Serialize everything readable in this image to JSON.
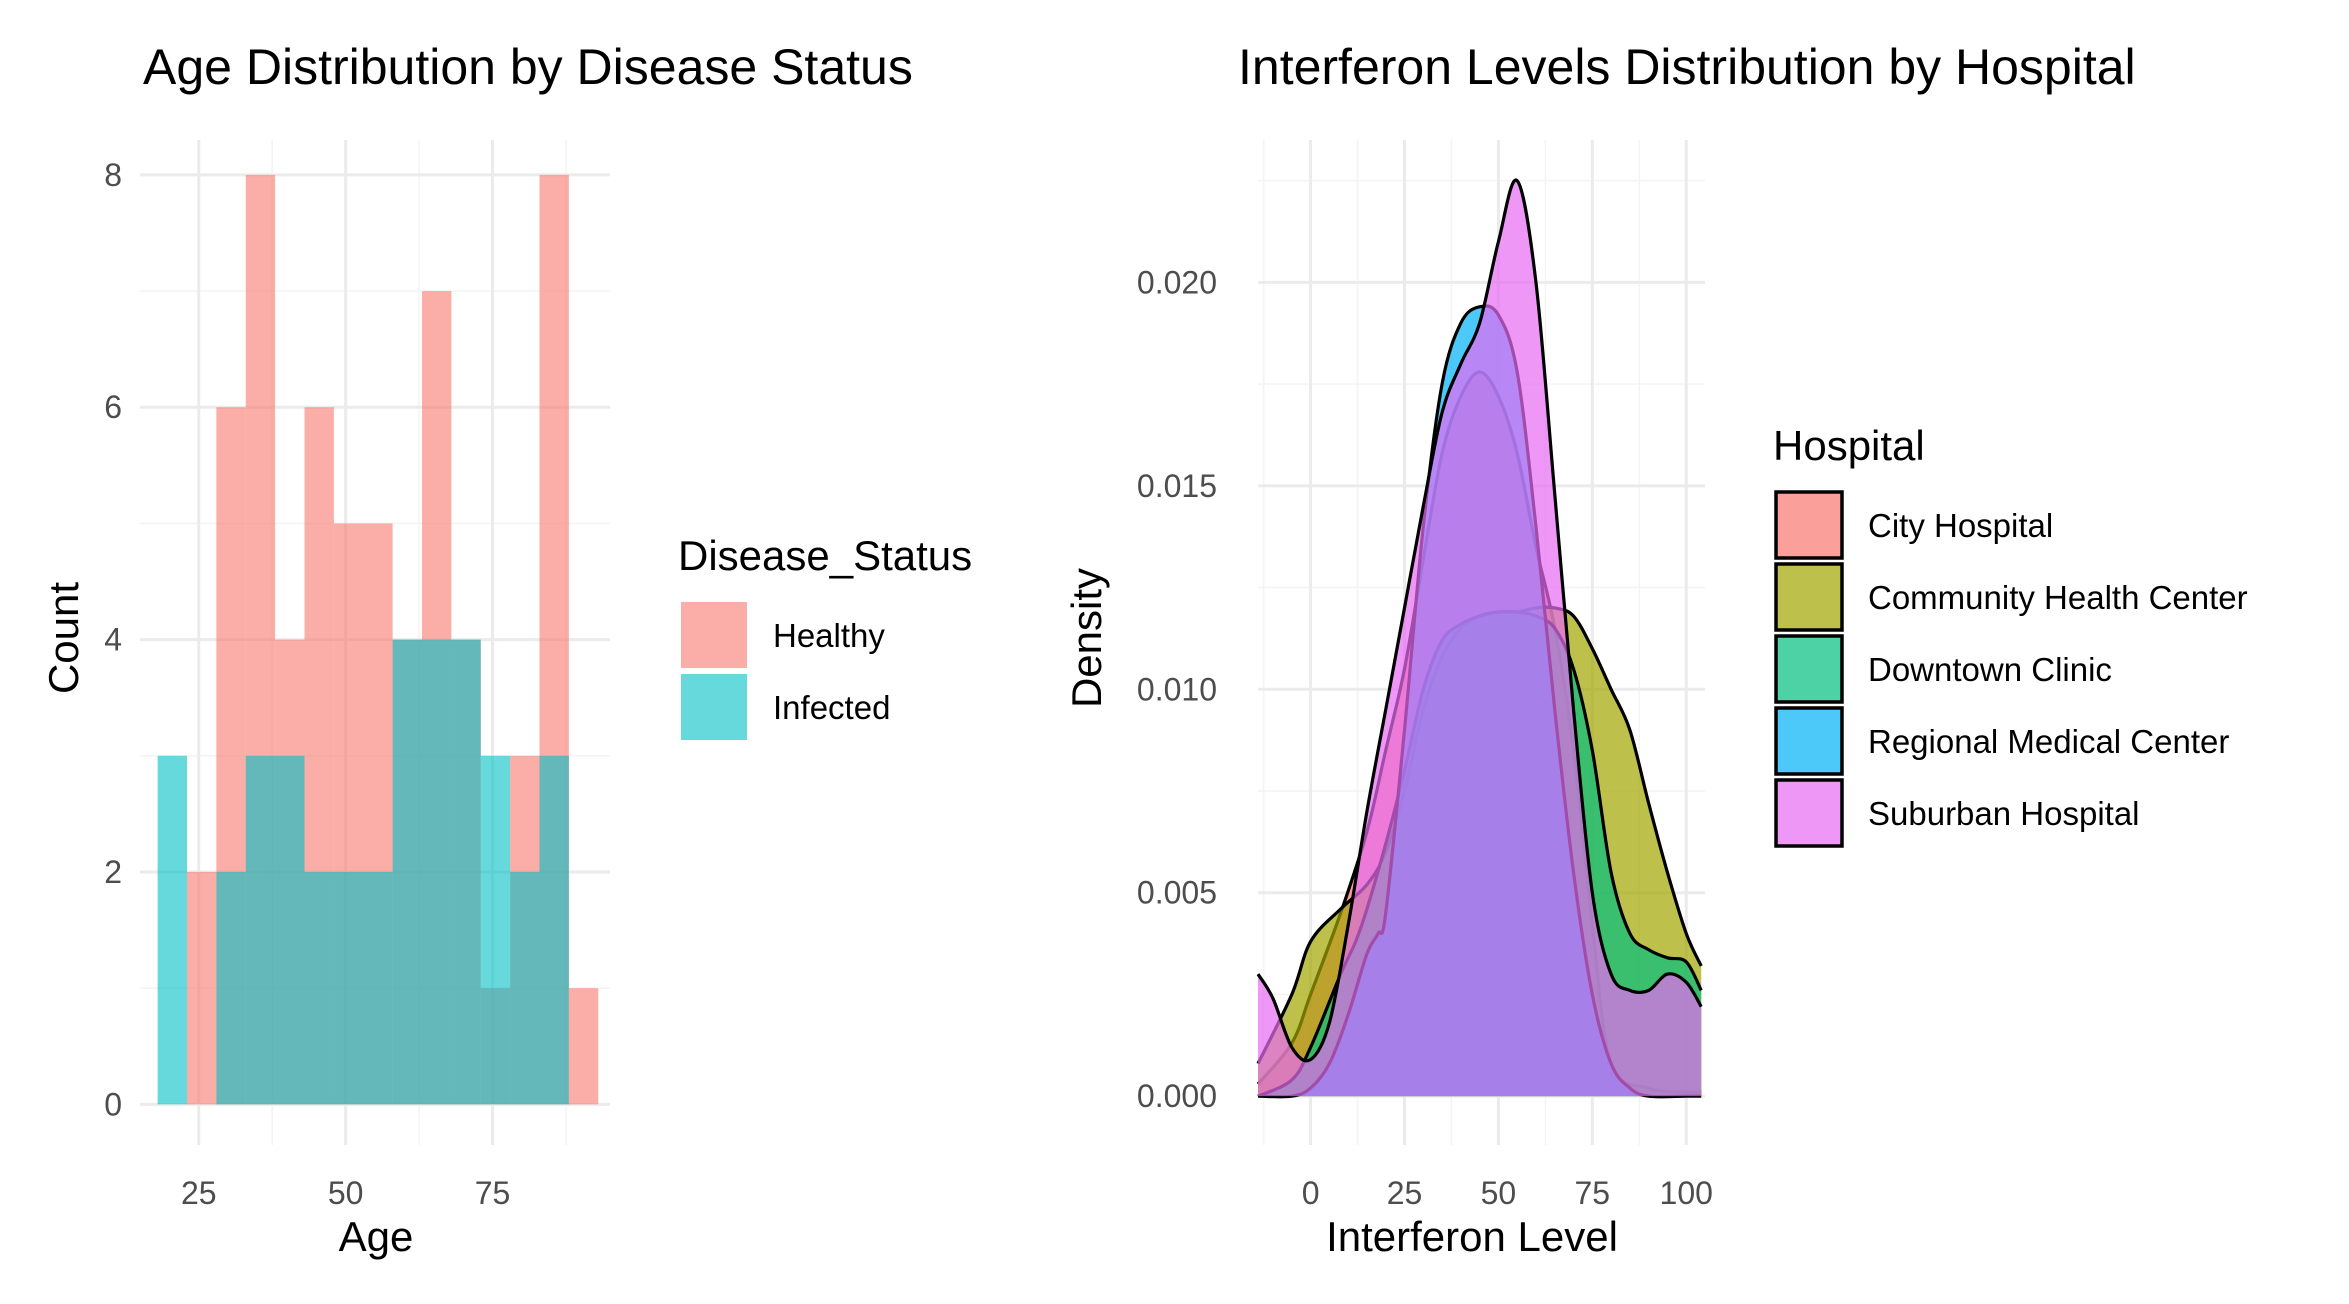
{
  "chart_data": [
    {
      "type": "histogram",
      "title": "Age Distribution by Disease Status",
      "xlabel": "Age",
      "ylabel": "Count",
      "xlim": [
        15,
        95
      ],
      "ylim": [
        -0.35,
        8.3
      ],
      "xticks": [
        25,
        50,
        75
      ],
      "yticks": [
        0,
        2,
        4,
        6,
        8
      ],
      "bin_width": 5,
      "legend_title": "Disease_Status",
      "legend_position": "right",
      "grid": true,
      "series": [
        {
          "name": "Healthy",
          "color": "#F8766D",
          "bins": [
            [
              23,
              28,
              2
            ],
            [
              28,
              33,
              6
            ],
            [
              33,
              38,
              8
            ],
            [
              38,
              43,
              4
            ],
            [
              43,
              48,
              6
            ],
            [
              48,
              58,
              5
            ],
            [
              58,
              63,
              4
            ],
            [
              63,
              68,
              7
            ],
            [
              68,
              73,
              4
            ],
            [
              73,
              78,
              1
            ],
            [
              78,
              83,
              3
            ],
            [
              83,
              88,
              8
            ],
            [
              88,
              93,
              1
            ]
          ]
        },
        {
          "name": "Infected",
          "color": "#00BFC4",
          "bins": [
            [
              18,
              23,
              3
            ],
            [
              23,
              28,
              0
            ],
            [
              28,
              33,
              2
            ],
            [
              33,
              43,
              3
            ],
            [
              43,
              58,
              2
            ],
            [
              58,
              73,
              4
            ],
            [
              73,
              78,
              3
            ],
            [
              78,
              83,
              2
            ],
            [
              83,
              88,
              3
            ]
          ]
        }
      ]
    },
    {
      "type": "area",
      "title": "Interferon Levels Distribution by Hospital",
      "xlabel": "Interferon Level",
      "ylabel": "Density",
      "xlim": [
        -14,
        105
      ],
      "ylim": [
        -0.0012,
        0.0235
      ],
      "xticks": [
        0,
        25,
        50,
        75,
        100
      ],
      "yticks": [
        0.0,
        0.005,
        0.01,
        0.015,
        0.02
      ],
      "ytick_labels": [
        "0.000",
        "0.005",
        "0.010",
        "0.015",
        "0.020"
      ],
      "legend_title": "Hospital",
      "legend_position": "right",
      "grid": true,
      "series": [
        {
          "name": "City Hospital",
          "color": "#F8766D",
          "x": [
            -14,
            -5,
            0,
            8,
            15,
            20,
            25,
            30,
            35,
            40,
            45,
            50,
            55,
            60,
            65,
            70,
            75,
            80,
            90,
            100,
            104
          ],
          "y": [
            0.0003,
            0.0013,
            0.0025,
            0.0045,
            0.0065,
            0.0085,
            0.0105,
            0.0132,
            0.0158,
            0.0172,
            0.0178,
            0.0172,
            0.0158,
            0.0135,
            0.0115,
            0.0085,
            0.0042,
            0.0008,
            0.0002,
            0.0001,
            0.0001
          ]
        },
        {
          "name": "Community Health Center",
          "color": "#A3A500",
          "x": [
            -14,
            -5,
            0,
            8,
            15,
            20,
            25,
            30,
            35,
            40,
            45,
            50,
            55,
            60,
            65,
            70,
            75,
            80,
            85,
            90,
            95,
            100,
            104
          ],
          "y": [
            0.0008,
            0.0025,
            0.0038,
            0.0046,
            0.0052,
            0.006,
            0.0075,
            0.0095,
            0.0108,
            0.0115,
            0.0118,
            0.0119,
            0.0119,
            0.012,
            0.012,
            0.0118,
            0.011,
            0.01,
            0.009,
            0.0072,
            0.0055,
            0.004,
            0.0032
          ]
        },
        {
          "name": "Downtown Clinic",
          "color": "#00BF7D",
          "x": [
            -14,
            -5,
            0,
            8,
            12,
            15,
            20,
            25,
            30,
            35,
            40,
            45,
            50,
            55,
            60,
            65,
            70,
            75,
            80,
            85,
            90,
            95,
            100,
            104
          ],
          "y": [
            0.0,
            0.0004,
            0.0012,
            0.003,
            0.0038,
            0.0046,
            0.0062,
            0.008,
            0.01,
            0.0112,
            0.0116,
            0.0118,
            0.0119,
            0.0119,
            0.0118,
            0.0115,
            0.0105,
            0.0085,
            0.0055,
            0.004,
            0.0036,
            0.0034,
            0.0033,
            0.0026
          ]
        },
        {
          "name": "Regional Medical Center",
          "color": "#00B0F6",
          "x": [
            -14,
            -5,
            0,
            5,
            10,
            15,
            18,
            20,
            25,
            30,
            35,
            40,
            45,
            50,
            55,
            60,
            65,
            70,
            75,
            80,
            85,
            90,
            100,
            104
          ],
          "y": [
            0.0,
            0.0,
            0.0002,
            0.0008,
            0.002,
            0.0035,
            0.004,
            0.0045,
            0.009,
            0.014,
            0.0175,
            0.019,
            0.0194,
            0.0192,
            0.0178,
            0.014,
            0.0095,
            0.0055,
            0.0025,
            0.0008,
            0.0002,
            0.0,
            0.0,
            0.0
          ]
        },
        {
          "name": "Suburban Hospital",
          "color": "#E76BF3",
          "x": [
            -14,
            -10,
            -5,
            0,
            5,
            10,
            15,
            20,
            25,
            30,
            35,
            40,
            45,
            50,
            55,
            60,
            65,
            70,
            75,
            80,
            85,
            90,
            95,
            100,
            104
          ],
          "y": [
            0.003,
            0.0024,
            0.0012,
            0.0009,
            0.0018,
            0.0042,
            0.007,
            0.0095,
            0.012,
            0.0145,
            0.0168,
            0.018,
            0.019,
            0.021,
            0.0225,
            0.02,
            0.0148,
            0.0095,
            0.005,
            0.003,
            0.0026,
            0.0026,
            0.003,
            0.0028,
            0.0022
          ]
        }
      ]
    }
  ]
}
